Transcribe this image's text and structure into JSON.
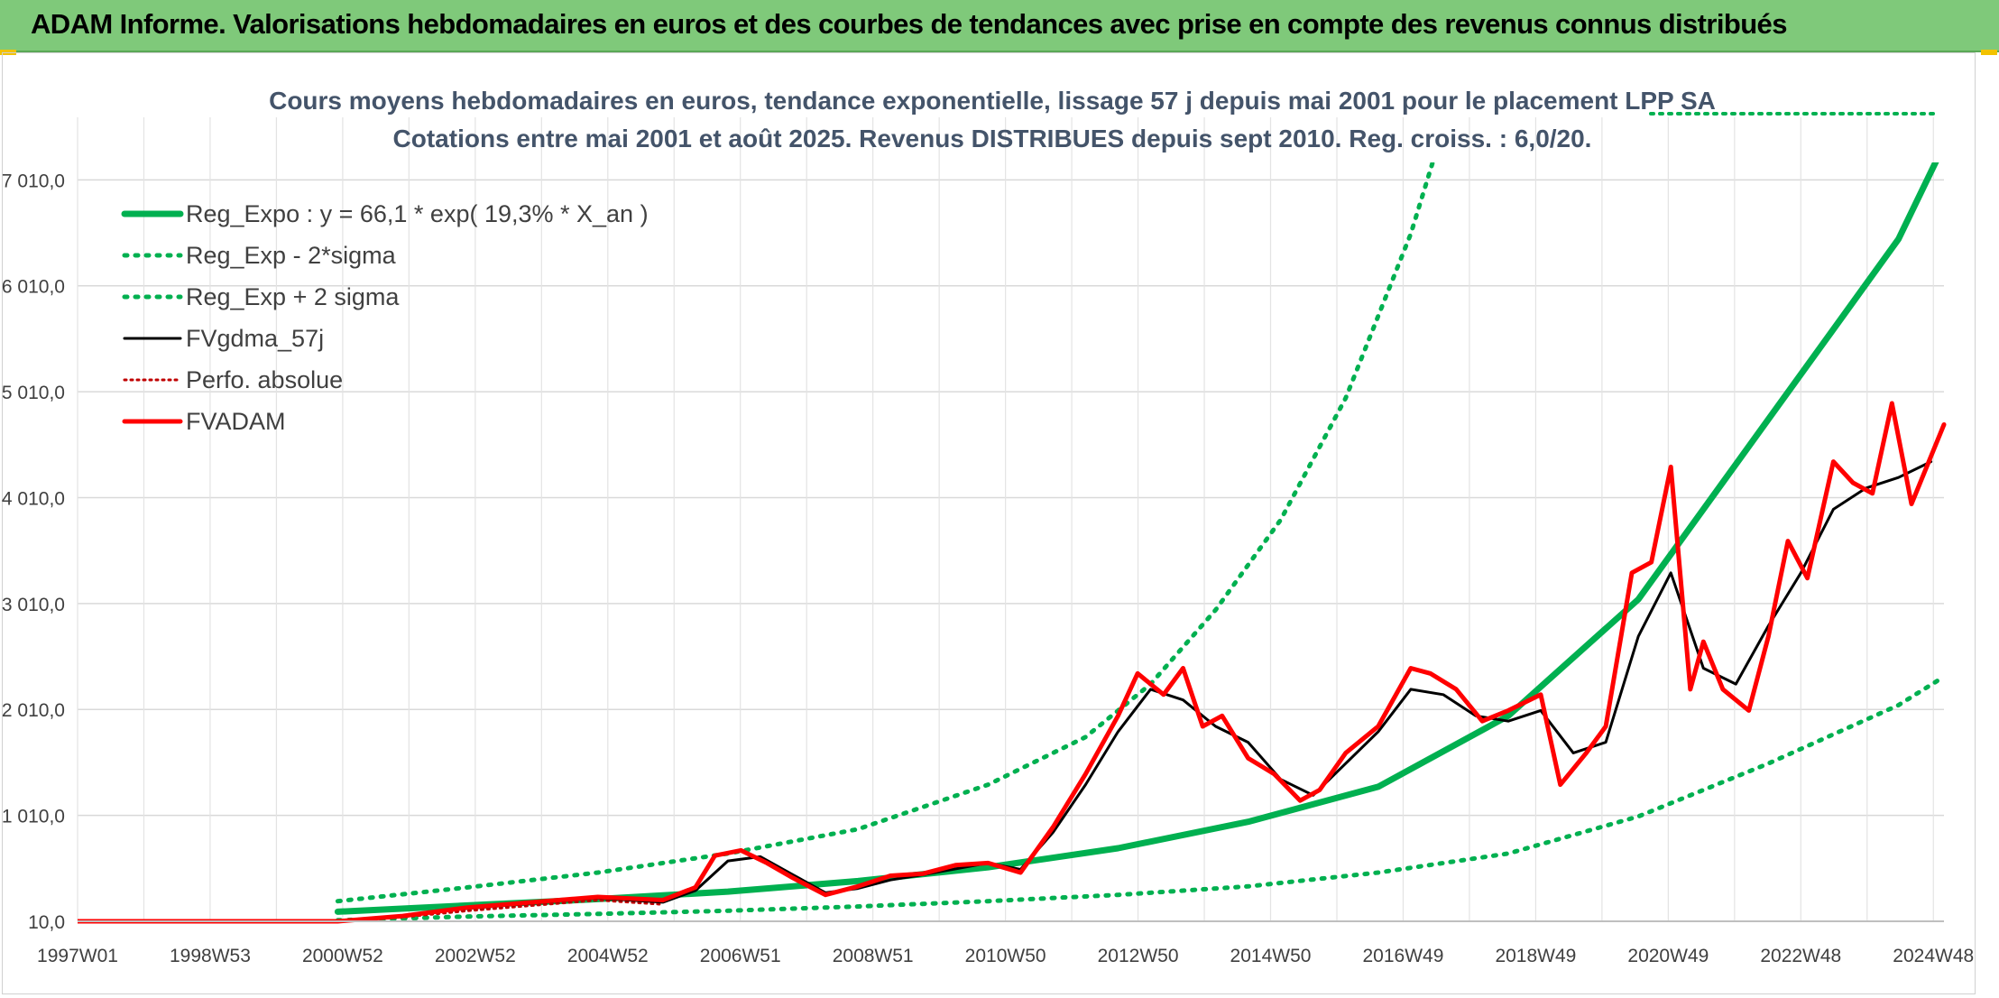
{
  "banner": {
    "title": "ADAM Informe. Valorisations hebdomadaires en euros et des courbes de tendances avec prise en compte des revenus connus distribués"
  },
  "colors": {
    "banner_bg": "#7fc97a",
    "trend_green": "#00b050",
    "smooth_black": "#000000",
    "price_red": "#ff0000",
    "subtitle": "#44546a"
  },
  "chart_data": {
    "type": "line",
    "title": "Cours moyens hebdomadaires en euros, tendance exponentielle, lissage 57 j depuis mai 2001 pour le placement LPP SA",
    "subtitle": "Cotations entre mai 2001 et août 2025. Revenus DISTRIBUES depuis sept 2010. Reg. croiss. : 6,0/20.",
    "x_tick_labels": [
      "1997W01",
      "1998W53",
      "2000W52",
      "2002W52",
      "2004W52",
      "2006W51",
      "2008W51",
      "2010W50",
      "2012W50",
      "2014W50",
      "2016W49",
      "2018W49",
      "2020W49",
      "2022W48",
      "2024W48"
    ],
    "x_range": [
      1997.0,
      2025.7
    ],
    "y_tick_labels": [
      "10,0",
      "1 010,0",
      "2 010,0",
      "3 010,0",
      "4 010,0",
      "5 010,0",
      "6 010,0",
      "7 010,0"
    ],
    "y_ticks": [
      10,
      1010,
      2010,
      3010,
      4010,
      5010,
      6010,
      7010
    ],
    "ylim": [
      10,
      7260
    ],
    "grid": true,
    "legend_position": "top-left",
    "series": [
      {
        "name": "Reg_Expo : y = 66,1 * exp( 19,3% *  X_an )",
        "style": "solid-thick",
        "color": "#00b050",
        "x": [
          2001.0,
          2003.0,
          2005.0,
          2007.0,
          2009.0,
          2011.0,
          2013.0,
          2015.0,
          2017.0,
          2019.0,
          2021.0,
          2023.0,
          2025.0,
          2025.7
        ],
        "y": [
          100,
          160,
          220,
          290,
          390,
          520,
          700,
          950,
          1280,
          1950,
          3050,
          4750,
          6450,
          7340
        ]
      },
      {
        "name": "Reg_Exp - 2*sigma",
        "style": "dotted",
        "color": "#00b050",
        "x": [
          2001.0,
          2003.0,
          2005.0,
          2007.0,
          2009.0,
          2011.0,
          2013.0,
          2015.0,
          2017.0,
          2019.0,
          2021.0,
          2023.0,
          2025.0,
          2025.7
        ],
        "y": [
          20,
          55,
          80,
          110,
          150,
          200,
          260,
          340,
          470,
          650,
          1000,
          1500,
          2050,
          2320
        ]
      },
      {
        "name": "Reg_Exp + 2 sigma",
        "style": "dotted",
        "color": "#00b050",
        "x": [
          2001.0,
          2003.0,
          2005.0,
          2007.0,
          2009.0,
          2011.0,
          2012.5,
          2013.5,
          2014.5,
          2015.5,
          2016.5,
          2017.5,
          2018.0
        ],
        "y": [
          200,
          330,
          470,
          650,
          880,
          1300,
          1750,
          2250,
          2950,
          3800,
          4950,
          6500,
          7500
        ]
      },
      {
        "name": "FVgdma_57j",
        "style": "solid",
        "color": "#000000",
        "x": [
          1997.0,
          2001.0,
          2002.0,
          2003.0,
          2004.0,
          2005.0,
          2006.0,
          2006.5,
          2007.0,
          2007.5,
          2008.0,
          2008.5,
          2009.0,
          2009.5,
          2010.0,
          2011.0,
          2011.5,
          2012.0,
          2012.5,
          2013.0,
          2013.5,
          2014.0,
          2014.5,
          2015.0,
          2015.5,
          2016.0,
          2016.5,
          2017.0,
          2017.5,
          2018.0,
          2018.5,
          2019.0,
          2019.5,
          2020.0,
          2020.5,
          2021.0,
          2021.5,
          2022.0,
          2022.5,
          2023.0,
          2023.5,
          2024.0,
          2024.5,
          2025.0,
          2025.5
        ],
        "y": [
          10,
          10,
          60,
          130,
          180,
          230,
          190,
          300,
          580,
          620,
          450,
          280,
          320,
          400,
          450,
          560,
          500,
          850,
          1300,
          1800,
          2200,
          2100,
          1850,
          1700,
          1350,
          1200,
          1500,
          1800,
          2200,
          2150,
          1950,
          1900,
          2000,
          1600,
          1700,
          2700,
          3300,
          2400,
          2250,
          2800,
          3300,
          3900,
          4100,
          4200,
          4350
        ]
      },
      {
        "name": "Perfo. absolue",
        "style": "dotted",
        "color": "#c00000",
        "x": [
          1997.0,
          2001.0,
          2002.0,
          2003.0,
          2004.0,
          2005.0,
          2006.0
        ],
        "y": [
          10,
          10,
          50,
          110,
          160,
          210,
          170
        ]
      },
      {
        "name": "FVADAM",
        "style": "solid-thick",
        "color": "#ff0000",
        "x": [
          1997.0,
          2001.0,
          2002.0,
          2003.0,
          2004.0,
          2005.0,
          2006.0,
          2006.5,
          2006.8,
          2007.2,
          2007.6,
          2008.0,
          2008.5,
          2009.0,
          2009.5,
          2010.0,
          2010.5,
          2011.0,
          2011.5,
          2012.0,
          2012.5,
          2013.0,
          2013.3,
          2013.7,
          2014.0,
          2014.3,
          2014.6,
          2015.0,
          2015.4,
          2015.8,
          2016.1,
          2016.5,
          2017.0,
          2017.5,
          2017.8,
          2018.2,
          2018.6,
          2019.0,
          2019.5,
          2019.8,
          2020.2,
          2020.5,
          2020.9,
          2021.2,
          2021.5,
          2021.8,
          2022.0,
          2022.3,
          2022.7,
          2023.0,
          2023.3,
          2023.6,
          2024.0,
          2024.3,
          2024.6,
          2024.9,
          2025.2,
          2025.5,
          2025.7
        ],
        "y": [
          10,
          10,
          60,
          140,
          190,
          240,
          210,
          330,
          630,
          680,
          560,
          420,
          260,
          340,
          440,
          460,
          540,
          560,
          470,
          900,
          1400,
          1950,
          2350,
          2150,
          2400,
          1850,
          1950,
          1550,
          1400,
          1150,
          1250,
          1600,
          1850,
          2400,
          2350,
          2200,
          1900,
          2000,
          2150,
          1300,
          1600,
          1850,
          3300,
          3400,
          4300,
          2200,
          2650,
          2200,
          2000,
          2700,
          3600,
          3250,
          4350,
          4150,
          4050,
          4900,
          3950,
          4400,
          4700
        ]
      }
    ]
  }
}
